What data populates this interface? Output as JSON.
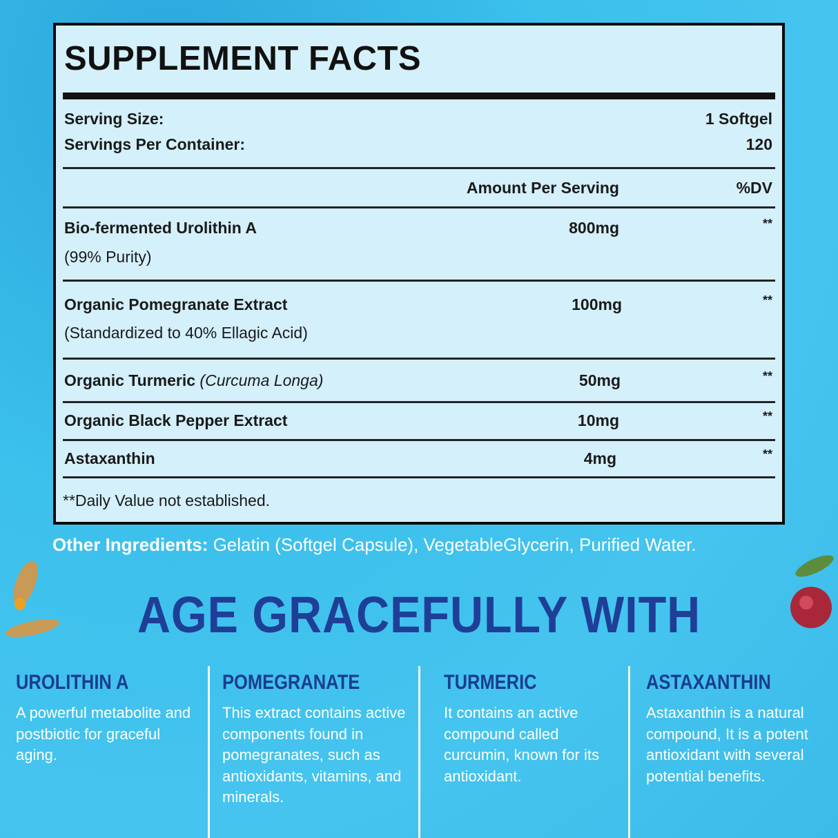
{
  "facts": {
    "title": "SUPPLEMENT FACTS",
    "serving_size_label": "Serving Size:",
    "serving_size": "1 Softgel",
    "servings_label": "Servings Per Container:",
    "servings": "120",
    "amount_header": "Amount Per Serving",
    "dv_header": "%DV",
    "rows": [
      {
        "name": "Bio-fermented Urolithin A",
        "sub": "(99% Purity)",
        "amount": "800mg",
        "dv": "**"
      },
      {
        "name": "Organic Pomegranate Extract",
        "sub": "(Standardized to 40% Ellagic Acid)",
        "amount": "100mg",
        "dv": "**"
      },
      {
        "name": "Organic Turmeric",
        "italic": "(Curcuma Longa)",
        "amount": "50mg",
        "dv": "**"
      },
      {
        "name": "Organic Black Pepper Extract",
        "amount": "10mg",
        "dv": "**"
      },
      {
        "name": "Astaxanthin",
        "amount": "4mg",
        "dv": "**"
      }
    ],
    "footnote": "**Daily Value not established."
  },
  "other_ingredients": {
    "label": "Other Ingredients:",
    "text": " Gelatin (Softgel Capsule), VegetableGlycerin, Purified Water."
  },
  "headline": "AGE GRACEFULLY WITH",
  "columns": [
    {
      "title": "UROLITHIN A",
      "text": "A powerful metabolite and postbiotic for graceful aging."
    },
    {
      "title": "POMEGRANATE",
      "text": "This extract contains active components found in pomegranates, such as antioxidants, vitamins, and minerals."
    },
    {
      "title": "TURMERIC",
      "text": "It contains an active compound called curcumin, known for its antioxidant."
    },
    {
      "title": "ASTAXANTHIN",
      "text": "Astaxanthin is a natural compound, It is a potent antioxidant with several potential benefits."
    }
  ],
  "colors": {
    "background": "#3cc0ec",
    "panel": "#d4f0fb",
    "headline": "#1f3f97",
    "column_title": "#1a3d8f"
  }
}
